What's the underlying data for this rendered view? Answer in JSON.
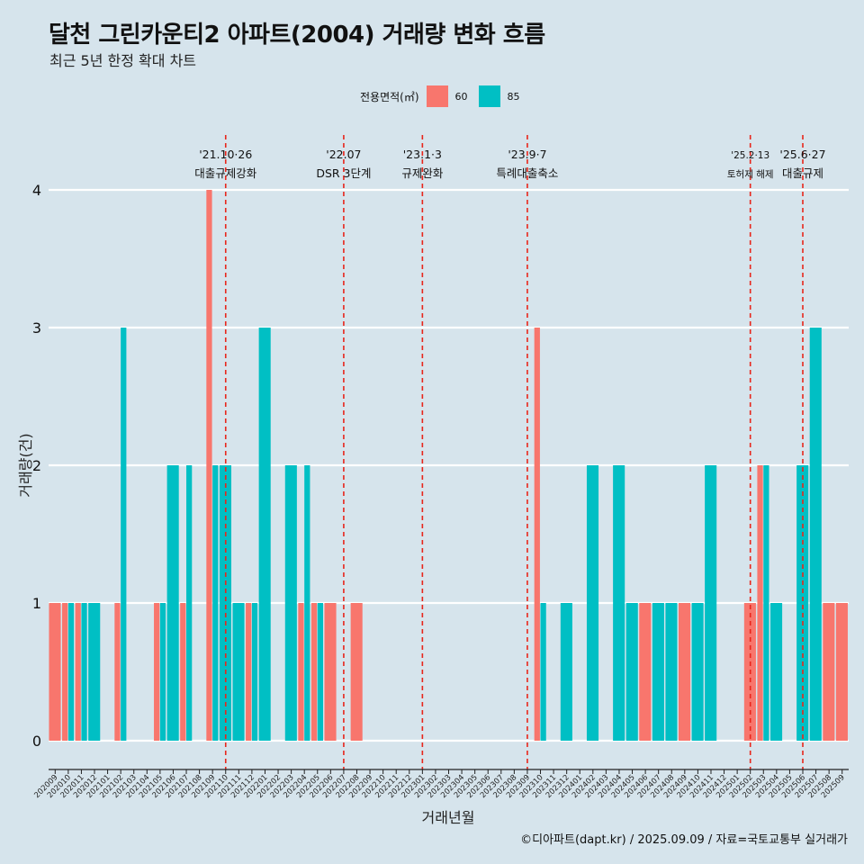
{
  "title": "달천 그린카운티2 아파트(2004) 거래량 변화 흐름",
  "subtitle": "최근 5년 한정 확대 차트",
  "legend": {
    "title": "전용면적(㎡)",
    "items": [
      {
        "label": "60",
        "color": "#f8766d"
      },
      {
        "label": "85",
        "color": "#00bfc4"
      }
    ]
  },
  "credit": "©디아파트(dapt.kr) / 2025.09.09 / 자료=국토교통부 실거래가",
  "chart_data": {
    "type": "bar",
    "xlabel": "거래년월",
    "ylabel": "거래량(건)",
    "ylim": [
      0,
      4
    ],
    "yticks": [
      0,
      1,
      2,
      3,
      4
    ],
    "grid": true,
    "legend_position": "top",
    "categories": [
      "202009",
      "202010",
      "202011",
      "202012",
      "202101",
      "202102",
      "202103",
      "202104",
      "202105",
      "202106",
      "202107",
      "202108",
      "202109",
      "202110",
      "202111",
      "202112",
      "202201",
      "202202",
      "202203",
      "202204",
      "202205",
      "202206",
      "202207",
      "202208",
      "202209",
      "202210",
      "202211",
      "202212",
      "202301",
      "202302",
      "202303",
      "202304",
      "202305",
      "202306",
      "202307",
      "202308",
      "202309",
      "202310",
      "202311",
      "202312",
      "202401",
      "202402",
      "202403",
      "202404",
      "202405",
      "202406",
      "202407",
      "202408",
      "202409",
      "202410",
      "202411",
      "202412",
      "202501",
      "202502",
      "202503",
      "202504",
      "202505",
      "202506",
      "202507",
      "202508",
      "202509"
    ],
    "series": [
      {
        "name": "60",
        "color": "#f8766d",
        "values": [
          1,
          1,
          1,
          0,
          0,
          1,
          0,
          0,
          1,
          0,
          1,
          0,
          4,
          0,
          0,
          1,
          0,
          0,
          0,
          1,
          1,
          1,
          0,
          1,
          0,
          0,
          0,
          0,
          0,
          0,
          0,
          0,
          0,
          0,
          0,
          0,
          0,
          3,
          0,
          0,
          0,
          0,
          0,
          0,
          0,
          1,
          0,
          0,
          1,
          0,
          0,
          0,
          0,
          1,
          2,
          0,
          0,
          0,
          0,
          1,
          1
        ]
      },
      {
        "name": "85",
        "color": "#00bfc4",
        "values": [
          0,
          1,
          1,
          1,
          0,
          3,
          0,
          0,
          1,
          2,
          2,
          0,
          2,
          2,
          1,
          1,
          3,
          0,
          2,
          2,
          1,
          0,
          0,
          0,
          0,
          0,
          0,
          0,
          0,
          0,
          0,
          0,
          0,
          0,
          0,
          0,
          0,
          1,
          0,
          1,
          0,
          2,
          0,
          2,
          1,
          0,
          1,
          1,
          0,
          1,
          2,
          0,
          0,
          0,
          2,
          1,
          0,
          2,
          3,
          0,
          0
        ]
      }
    ],
    "events": [
      {
        "date": "'21.10·26",
        "label": "대출규제강화",
        "category": "202110"
      },
      {
        "date": "'22.07",
        "label": "DSR 3단계",
        "category": "202207"
      },
      {
        "date": "'23.1·3",
        "label": "규제완화",
        "category": "202301"
      },
      {
        "date": "'23.9·7",
        "label": "특례대출축소",
        "category": "202309"
      },
      {
        "date": "'25.2·13",
        "label": "토허제 해제",
        "category": "202502"
      },
      {
        "date": "'25.6·27",
        "label": "대출규제",
        "category": "202506"
      }
    ]
  }
}
